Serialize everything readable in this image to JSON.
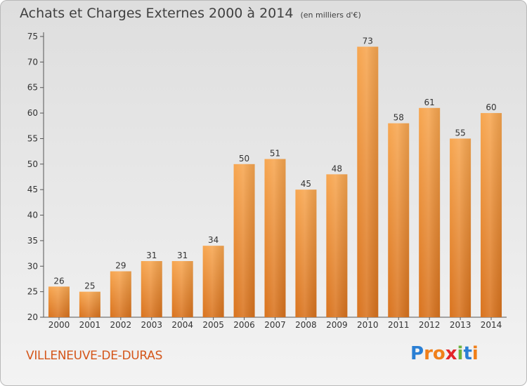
{
  "title": "Achats et Charges Externes 2000 à 2014",
  "subtitle": "(en milliers d'€)",
  "commune": "VILLENEUVE-DE-DURAS",
  "logo": {
    "letters": [
      "P",
      "r",
      "o",
      "x",
      "i",
      "t",
      "i"
    ],
    "colors": [
      "#2a7fd4",
      "#f07f1a",
      "#f07f1a",
      "#e3262a",
      "#6db33f",
      "#2a7fd4",
      "#f07f1a"
    ]
  },
  "chart_data": {
    "type": "bar",
    "categories": [
      "2000",
      "2001",
      "2002",
      "2003",
      "2004",
      "2005",
      "2006",
      "2007",
      "2008",
      "2009",
      "2010",
      "2011",
      "2012",
      "2013",
      "2014"
    ],
    "values": [
      26,
      25,
      29,
      31,
      31,
      34,
      50,
      51,
      45,
      48,
      73,
      58,
      61,
      55,
      60
    ],
    "ylim": [
      20,
      75
    ],
    "yticks": [
      20,
      25,
      30,
      35,
      40,
      45,
      50,
      55,
      60,
      65,
      70,
      75
    ],
    "bar_color": "#f0913a",
    "grid": false
  }
}
